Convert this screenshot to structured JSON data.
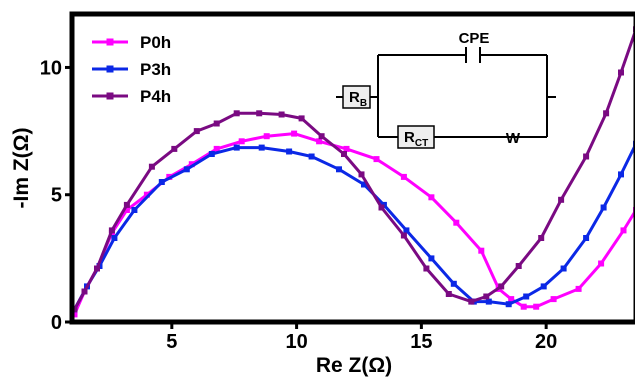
{
  "chart_data": {
    "type": "line",
    "xlabel": "Re Z(Ω)",
    "ylabel": "-Im Z(Ω)",
    "xlim": [
      1.0,
      23.6
    ],
    "ylim": [
      0,
      12.1
    ],
    "xticks": [
      5,
      10,
      15,
      20
    ],
    "yticks": [
      0,
      5,
      10
    ],
    "grid": false,
    "legend_position": "top-left",
    "series": [
      {
        "name": "P0h",
        "color": "#ff00ff",
        "points": [
          [
            1.1,
            0.3
          ],
          [
            1.5,
            1.2
          ],
          [
            2.0,
            2.1
          ],
          [
            2.6,
            3.5
          ],
          [
            3.2,
            4.4
          ],
          [
            4.0,
            5.0
          ],
          [
            4.9,
            5.7
          ],
          [
            5.8,
            6.2
          ],
          [
            6.8,
            6.8
          ],
          [
            7.8,
            7.1
          ],
          [
            8.8,
            7.3
          ],
          [
            9.9,
            7.4
          ],
          [
            10.9,
            7.1
          ],
          [
            12.0,
            6.8
          ],
          [
            13.2,
            6.4
          ],
          [
            14.3,
            5.7
          ],
          [
            15.4,
            4.9
          ],
          [
            16.4,
            3.9
          ],
          [
            17.4,
            2.8
          ],
          [
            18.1,
            1.3
          ],
          [
            18.6,
            0.9
          ],
          [
            19.1,
            0.6
          ],
          [
            19.6,
            0.6
          ],
          [
            20.3,
            0.9
          ],
          [
            21.3,
            1.3
          ],
          [
            22.2,
            2.3
          ],
          [
            23.1,
            3.6
          ],
          [
            23.6,
            4.4
          ]
        ]
      },
      {
        "name": "P3h",
        "color": "#0b28e6",
        "points": [
          [
            1.1,
            0.5
          ],
          [
            1.6,
            1.4
          ],
          [
            2.1,
            2.2
          ],
          [
            2.7,
            3.3
          ],
          [
            3.5,
            4.4
          ],
          [
            4.6,
            5.5
          ],
          [
            5.6,
            6.0
          ],
          [
            6.6,
            6.6
          ],
          [
            7.6,
            6.85
          ],
          [
            8.6,
            6.85
          ],
          [
            9.7,
            6.7
          ],
          [
            10.6,
            6.5
          ],
          [
            11.7,
            6.0
          ],
          [
            12.7,
            5.4
          ],
          [
            13.5,
            4.6
          ],
          [
            14.4,
            3.6
          ],
          [
            15.4,
            2.5
          ],
          [
            16.3,
            1.5
          ],
          [
            17.1,
            0.8
          ],
          [
            17.7,
            0.8
          ],
          [
            18.5,
            0.7
          ],
          [
            19.2,
            1.0
          ],
          [
            19.9,
            1.4
          ],
          [
            20.7,
            2.1
          ],
          [
            21.6,
            3.3
          ],
          [
            22.3,
            4.5
          ],
          [
            23.0,
            5.8
          ],
          [
            23.6,
            7.0
          ]
        ]
      },
      {
        "name": "P4h",
        "color": "#7a0a82",
        "points": [
          [
            1.1,
            0.5
          ],
          [
            1.5,
            1.2
          ],
          [
            2.0,
            2.1
          ],
          [
            2.6,
            3.6
          ],
          [
            3.2,
            4.6
          ],
          [
            4.2,
            6.1
          ],
          [
            5.1,
            6.8
          ],
          [
            6.0,
            7.5
          ],
          [
            6.8,
            7.8
          ],
          [
            7.6,
            8.2
          ],
          [
            8.5,
            8.2
          ],
          [
            9.4,
            8.15
          ],
          [
            10.2,
            8.0
          ],
          [
            11.0,
            7.3
          ],
          [
            11.9,
            6.6
          ],
          [
            12.6,
            5.8
          ],
          [
            13.4,
            4.5
          ],
          [
            14.3,
            3.4
          ],
          [
            15.2,
            2.1
          ],
          [
            16.1,
            1.1
          ],
          [
            17.0,
            0.8
          ],
          [
            17.6,
            1.0
          ],
          [
            18.2,
            1.4
          ],
          [
            18.9,
            2.2
          ],
          [
            19.8,
            3.3
          ],
          [
            20.6,
            4.8
          ],
          [
            21.6,
            6.5
          ],
          [
            22.4,
            8.2
          ],
          [
            23.0,
            9.8
          ],
          [
            23.6,
            11.5
          ]
        ]
      }
    ]
  },
  "circuit": {
    "cpe_label": "CPE",
    "rb_main": "R",
    "rb_sub": "B",
    "rct_main": "R",
    "rct_sub": "CT",
    "w_label": "W"
  }
}
